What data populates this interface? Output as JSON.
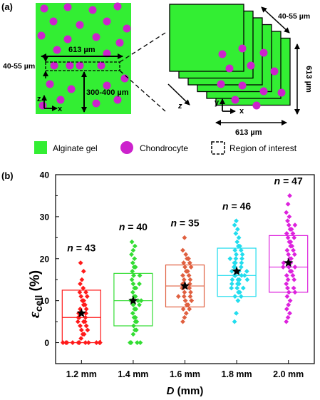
{
  "panel_a": {
    "label": "(a)",
    "dim_613_top": "613 µm",
    "dim_613_bottom": "613 µm",
    "dim_613_side": "613 µm",
    "dim_roi_thickness_left": "40-55 µm",
    "dim_roi_thickness_right": "40-55 µm",
    "dim_depth": "300-400 µm",
    "axis_z": "z",
    "axis_x": "x",
    "axis_y": "y",
    "axis_z_stack": "z",
    "axis_x_stack": "x"
  },
  "legend": {
    "alginate": "Alginate gel",
    "chondrocyte": "Chondrocyte",
    "roi": "Region of interest"
  },
  "colors": {
    "gel": "#33ee33",
    "cell": "#cc22cc",
    "red": "#ff1a1a",
    "green": "#33dd33",
    "orange": "#e06040",
    "cyan": "#22ddee",
    "magenta": "#dd22dd"
  },
  "panel_b": {
    "label": "(b)"
  },
  "chart_data": {
    "type": "scatter",
    "xlabel": "D (mm)",
    "xlabel_var": "D",
    "xlabel_unit": " (mm)",
    "ylabel_sym": "ε",
    "ylabel_sub": "cell",
    "ylabel_unit": " (%)",
    "ylim": [
      -5,
      40
    ],
    "yticks": [
      0,
      10,
      20,
      30,
      40
    ],
    "categories": [
      "1.2 mm",
      "1.4 mm",
      "1.6 mm",
      "1.8 mm",
      "2.0 mm"
    ],
    "groups": [
      {
        "n_label": "n = 43",
        "color": "#ff1a1a",
        "box": [
          0,
          12.5
        ],
        "median": 6,
        "mean": 7,
        "points": [
          0,
          0,
          0,
          0,
          0,
          0,
          0,
          0,
          0,
          0,
          0,
          0,
          1,
          2,
          2,
          3,
          3,
          4,
          4,
          5,
          5,
          5,
          6,
          6,
          6,
          7,
          7,
          7,
          8,
          8,
          9,
          9,
          10,
          10,
          11,
          11,
          12,
          12,
          13,
          14,
          15,
          17,
          19
        ]
      },
      {
        "n_label": "n = 40",
        "color": "#33dd33",
        "box": [
          4,
          16.5
        ],
        "median": 10,
        "mean": 10,
        "points": [
          0,
          0,
          0,
          0,
          2,
          3,
          3,
          4,
          5,
          5,
          6,
          6,
          7,
          8,
          8,
          9,
          9,
          10,
          10,
          10,
          10,
          11,
          11,
          12,
          13,
          13,
          14,
          14,
          15,
          16,
          16,
          17,
          18,
          18,
          19,
          20,
          21,
          22,
          23,
          24
        ]
      },
      {
        "n_label": "n = 35",
        "color": "#e06040",
        "box": [
          8.5,
          18.5
        ],
        "median": 13.5,
        "mean": 13.5,
        "points": [
          5,
          6,
          7,
          8,
          8,
          9,
          9,
          10,
          10,
          11,
          11,
          11,
          12,
          12,
          13,
          13,
          13,
          14,
          14,
          14,
          15,
          15,
          16,
          16,
          17,
          17,
          18,
          18,
          19,
          19,
          20,
          20,
          21,
          22,
          25
        ]
      },
      {
        "n_label": "n = 46",
        "color": "#22ddee",
        "box": [
          11,
          22.5
        ],
        "median": 16,
        "mean": 17,
        "points": [
          5,
          7,
          10,
          11,
          11,
          12,
          12,
          13,
          13,
          13,
          14,
          14,
          14,
          15,
          15,
          15,
          15,
          16,
          16,
          16,
          16,
          17,
          17,
          17,
          17,
          18,
          18,
          18,
          19,
          19,
          19,
          20,
          20,
          20,
          21,
          21,
          22,
          22,
          23,
          23,
          24,
          25,
          26,
          27,
          28,
          29
        ]
      },
      {
        "n_label": "n = 47",
        "color": "#dd22dd",
        "box": [
          12,
          25.5
        ],
        "median": 18,
        "mean": 19,
        "points": [
          5,
          6,
          7,
          8,
          9,
          10,
          11,
          12,
          12,
          13,
          13,
          14,
          15,
          15,
          16,
          16,
          17,
          17,
          18,
          18,
          18,
          19,
          19,
          19,
          20,
          20,
          21,
          21,
          22,
          22,
          23,
          23,
          24,
          24,
          25,
          25,
          26,
          26,
          27,
          27,
          28,
          28,
          29,
          30,
          31,
          33,
          35
        ]
      }
    ]
  }
}
